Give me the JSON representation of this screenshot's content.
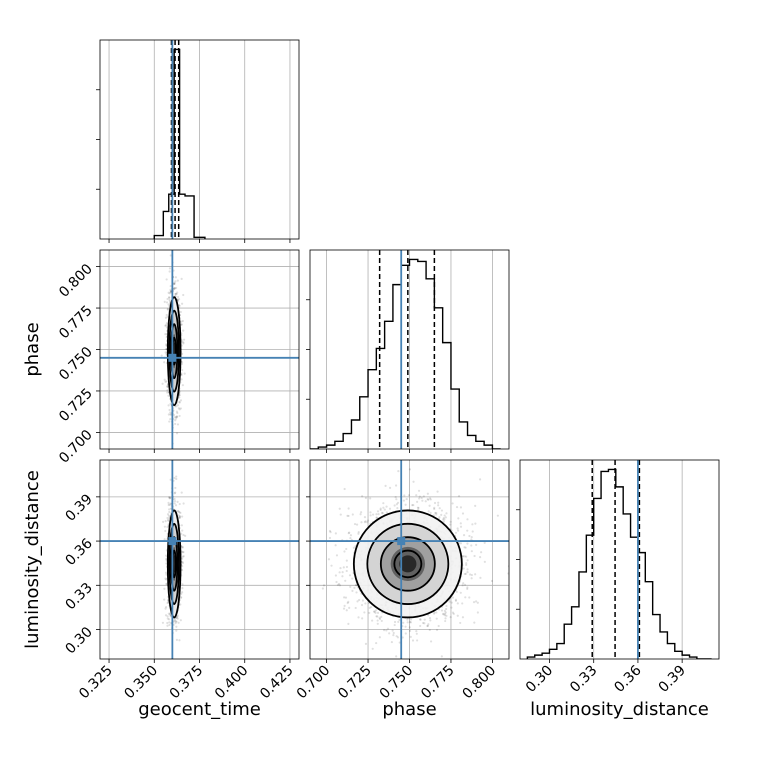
{
  "chart_data": {
    "type": "corner",
    "parameters": [
      "geocent_time",
      "phase",
      "luminosity_distance"
    ],
    "truths": {
      "geocent_time": 0.36,
      "phase": 0.745,
      "luminosity_distance": 0.36
    },
    "truth_color": "#4682b4",
    "axes": {
      "geocent_time": {
        "label": "geocent_time",
        "range": [
          0.32,
          0.43
        ],
        "ticks": [
          0.325,
          0.35,
          0.375,
          0.4,
          0.425
        ],
        "tick_labels": [
          "0.325",
          "0.350",
          "0.375",
          "0.400",
          "0.425"
        ]
      },
      "phase": {
        "label": "phase",
        "range": [
          0.69,
          0.81
        ],
        "ticks": [
          0.7,
          0.725,
          0.75,
          0.775,
          0.8
        ],
        "tick_labels": [
          "0.700",
          "0.725",
          "0.750",
          "0.775",
          "0.800"
        ]
      },
      "luminosity_distance": {
        "label": "luminosity_distance",
        "range": [
          0.28,
          0.415
        ],
        "ticks": [
          0.3,
          0.33,
          0.36,
          0.39
        ],
        "tick_labels": [
          "0.30",
          "0.33",
          "0.36",
          "0.39"
        ]
      }
    },
    "marginals": [
      {
        "param": "geocent_time",
        "bin_edges": [
          0.35,
          0.355,
          0.358,
          0.361,
          0.364,
          0.367,
          0.372,
          0.378
        ],
        "counts": [
          0.02,
          0.16,
          0.26,
          1.1,
          0.26,
          0.25,
          0.01
        ],
        "quantiles": [
          0.3595,
          0.3615,
          0.3635
        ]
      },
      {
        "param": "phase",
        "bin_edges": [
          0.69,
          0.695,
          0.7,
          0.705,
          0.71,
          0.715,
          0.72,
          0.725,
          0.73,
          0.735,
          0.74,
          0.745,
          0.75,
          0.755,
          0.76,
          0.765,
          0.77,
          0.775,
          0.78,
          0.785,
          0.79,
          0.795,
          0.8,
          0.805
        ],
        "counts": [
          0.0,
          0.01,
          0.02,
          0.04,
          0.08,
          0.15,
          0.27,
          0.41,
          0.52,
          0.66,
          0.85,
          0.95,
          0.98,
          0.97,
          0.88,
          0.73,
          0.55,
          0.31,
          0.14,
          0.07,
          0.04,
          0.02,
          0.0
        ],
        "quantiles": [
          0.732,
          0.749,
          0.765
        ]
      },
      {
        "param": "luminosity_distance",
        "bin_edges": [
          0.285,
          0.29,
          0.295,
          0.3,
          0.305,
          0.31,
          0.315,
          0.32,
          0.325,
          0.33,
          0.335,
          0.34,
          0.345,
          0.35,
          0.355,
          0.36,
          0.365,
          0.37,
          0.375,
          0.38,
          0.385,
          0.39,
          0.395,
          0.4,
          0.405,
          0.41
        ],
        "counts": [
          0.01,
          0.02,
          0.03,
          0.05,
          0.08,
          0.18,
          0.27,
          0.45,
          0.64,
          0.83,
          0.97,
          0.98,
          0.89,
          0.75,
          0.63,
          0.55,
          0.4,
          0.23,
          0.14,
          0.08,
          0.04,
          0.02,
          0.01,
          0.0,
          0.0
        ],
        "quantiles": [
          0.329,
          0.3445,
          0.361
        ]
      }
    ],
    "joints": [
      {
        "x": "geocent_time",
        "y": "phase",
        "center": [
          0.361,
          0.749
        ],
        "sigma": [
          0.0016,
          0.0148
        ],
        "contour_levels_sigma": [
          0.5,
          1.0,
          1.5,
          2.0
        ],
        "n_points": 1400
      },
      {
        "x": "geocent_time",
        "y": "luminosity_distance",
        "center": [
          0.361,
          0.3445
        ],
        "sigma": [
          0.0016,
          0.0165
        ],
        "contour_levels_sigma": [
          0.5,
          1.0,
          1.5,
          2.0
        ],
        "n_points": 1400
      },
      {
        "x": "phase",
        "y": "luminosity_distance",
        "center": [
          0.749,
          0.3445
        ],
        "sigma": [
          0.0148,
          0.0165
        ],
        "contour_levels_sigma": [
          0.5,
          1.0,
          1.5,
          2.0
        ],
        "n_points": 2200
      }
    ],
    "grid": true,
    "y_tick_labels_only_on_first_column": true
  }
}
